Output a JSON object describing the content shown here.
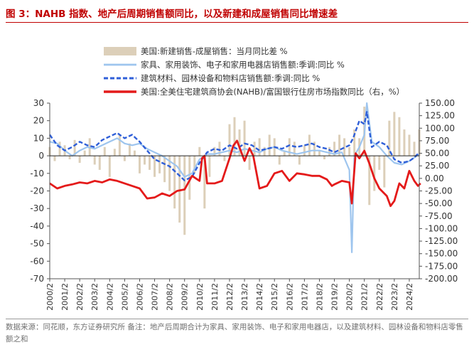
{
  "figure": {
    "title": "图 3：NAHB 指数、地产后周期销售额同比，以及新建和成屋销售同比增速差",
    "source": "数据来源：同花顺，东方证券研究所  备注：地产后周期合计为家具、家用装饰、电子和家用电器店，以及建筑材料、园林设备和物料店零售额之和"
  },
  "colors": {
    "title": "#c00000",
    "bar_series": "#dccfb9",
    "line_furniture": "#9ec5ee",
    "line_building": "#2f5fd8",
    "line_nahb": "#e41a1a"
  },
  "chart_data": {
    "type": "bar+line",
    "legend": {
      "placement": "top-left",
      "entries": [
        "美国:新建销售-成屋销售：当月同比差 %",
        "家具、家用装饰、电子和家用电器店销售额:季调:同比 %",
        "建筑材料、园林设备和物料店销售额:季调:同比 %",
        "美国:全美住宅建筑商协会(NAHB)/富国银行住房市场指数同比（右，%）"
      ]
    },
    "x_axis": {
      "ticks": [
        "2000/2",
        "2001/2",
        "2002/2",
        "2003/2",
        "2004/2",
        "2005/2",
        "2006/2",
        "2007/2",
        "2008/2",
        "2009/2",
        "2010/2",
        "2011/2",
        "2012/2",
        "2013/2",
        "2014/2",
        "2015/2",
        "2016/2",
        "2017/2",
        "2018/2",
        "2019/2",
        "2020/2",
        "2021/2",
        "2022/2",
        "2023/2",
        "2024/2"
      ],
      "range": [
        "2000-02",
        "2024-10"
      ]
    },
    "y_left": {
      "ylim": [
        -70,
        30
      ],
      "ticks": [
        30,
        20,
        10,
        0,
        -10,
        -20,
        -30,
        -40,
        -50,
        -60,
        -70
      ]
    },
    "y_right": {
      "ylim": [
        -200,
        150
      ],
      "ticks": [
        "150.00",
        "125.00",
        "100.00",
        "75.00",
        "50.00",
        "25.00",
        "0.00",
        "-25.00",
        "-50.00",
        "-75.00",
        "-100.00",
        "-125.00",
        "-150.00",
        "-175.00",
        "-200.00"
      ]
    },
    "series": [
      {
        "name": "美国:新建销售-成屋销售：当月同比差 %",
        "kind": "bar",
        "axis": "left",
        "points": [
          [
            "2000-02",
            5
          ],
          [
            "2000-06",
            -3
          ],
          [
            "2000-10",
            8
          ],
          [
            "2001-02",
            6
          ],
          [
            "2001-06",
            -2
          ],
          [
            "2001-10",
            9
          ],
          [
            "2002-02",
            -4
          ],
          [
            "2002-06",
            3
          ],
          [
            "2002-10",
            10
          ],
          [
            "2003-02",
            -5
          ],
          [
            "2003-06",
            -8
          ],
          [
            "2003-10",
            5
          ],
          [
            "2004-02",
            -12
          ],
          [
            "2004-06",
            4
          ],
          [
            "2004-10",
            12
          ],
          [
            "2005-02",
            -3
          ],
          [
            "2005-06",
            7
          ],
          [
            "2005-10",
            3
          ],
          [
            "2006-02",
            -10
          ],
          [
            "2006-06",
            -5
          ],
          [
            "2006-10",
            -8
          ],
          [
            "2007-02",
            -12
          ],
          [
            "2007-06",
            -10
          ],
          [
            "2007-10",
            -15
          ],
          [
            "2008-02",
            -20
          ],
          [
            "2008-06",
            -30
          ],
          [
            "2008-10",
            -38
          ],
          [
            "2009-02",
            -45
          ],
          [
            "2009-06",
            -25
          ],
          [
            "2009-10",
            -10
          ],
          [
            "2010-02",
            5
          ],
          [
            "2010-06",
            -30
          ],
          [
            "2010-10",
            -12
          ],
          [
            "2011-02",
            5
          ],
          [
            "2011-06",
            8
          ],
          [
            "2011-10",
            -3
          ],
          [
            "2012-02",
            18
          ],
          [
            "2012-06",
            22
          ],
          [
            "2012-10",
            15
          ],
          [
            "2013-02",
            20
          ],
          [
            "2013-06",
            -8
          ],
          [
            "2013-10",
            8
          ],
          [
            "2014-02",
            10
          ],
          [
            "2014-06",
            5
          ],
          [
            "2014-10",
            12
          ],
          [
            "2015-02",
            10
          ],
          [
            "2015-06",
            -5
          ],
          [
            "2015-10",
            3
          ],
          [
            "2016-02",
            10
          ],
          [
            "2016-06",
            8
          ],
          [
            "2016-10",
            -5
          ],
          [
            "2017-02",
            6
          ],
          [
            "2017-06",
            12
          ],
          [
            "2017-10",
            8
          ],
          [
            "2018-02",
            3
          ],
          [
            "2018-06",
            -2
          ],
          [
            "2018-10",
            5
          ],
          [
            "2019-02",
            8
          ],
          [
            "2019-06",
            12
          ],
          [
            "2019-10",
            10
          ],
          [
            "2020-02",
            5
          ],
          [
            "2020-06",
            15
          ],
          [
            "2020-10",
            10
          ],
          [
            "2021-02",
            28
          ],
          [
            "2021-06",
            -28
          ],
          [
            "2021-10",
            -20
          ],
          [
            "2022-02",
            -8
          ],
          [
            "2022-06",
            -18
          ],
          [
            "2022-10",
            20
          ],
          [
            "2023-02",
            25
          ],
          [
            "2023-06",
            22
          ],
          [
            "2023-10",
            15
          ],
          [
            "2024-02",
            12
          ],
          [
            "2024-06",
            8
          ],
          [
            "2024-10",
            15
          ]
        ]
      },
      {
        "name": "家具、家用装饰、电子和家用电器店销售额:季调:同比 %",
        "kind": "line",
        "axis": "left",
        "points": [
          [
            "2000-02",
            8
          ],
          [
            "2000-08",
            7
          ],
          [
            "2001-02",
            3
          ],
          [
            "2001-08",
            0
          ],
          [
            "2002-02",
            3
          ],
          [
            "2002-08",
            5
          ],
          [
            "2003-02",
            4
          ],
          [
            "2003-08",
            6
          ],
          [
            "2004-02",
            8
          ],
          [
            "2004-08",
            10
          ],
          [
            "2005-02",
            7
          ],
          [
            "2005-08",
            6
          ],
          [
            "2006-02",
            7
          ],
          [
            "2006-08",
            4
          ],
          [
            "2007-02",
            2
          ],
          [
            "2007-08",
            0
          ],
          [
            "2008-02",
            -3
          ],
          [
            "2008-08",
            -6
          ],
          [
            "2009-02",
            -12
          ],
          [
            "2009-08",
            -10
          ],
          [
            "2010-02",
            -2
          ],
          [
            "2010-08",
            1
          ],
          [
            "2011-02",
            1
          ],
          [
            "2011-08",
            2
          ],
          [
            "2012-02",
            3
          ],
          [
            "2012-08",
            2
          ],
          [
            "2013-02",
            4
          ],
          [
            "2013-08",
            3
          ],
          [
            "2014-02",
            2
          ],
          [
            "2014-08",
            4
          ],
          [
            "2015-02",
            5
          ],
          [
            "2015-08",
            3
          ],
          [
            "2016-02",
            2
          ],
          [
            "2016-08",
            1
          ],
          [
            "2017-02",
            2
          ],
          [
            "2017-08",
            3
          ],
          [
            "2018-02",
            3
          ],
          [
            "2018-08",
            2
          ],
          [
            "2019-02",
            1
          ],
          [
            "2019-08",
            2
          ],
          [
            "2020-02",
            -8
          ],
          [
            "2020-04",
            -55
          ],
          [
            "2020-06",
            0
          ],
          [
            "2020-10",
            5
          ],
          [
            "2021-02",
            12
          ],
          [
            "2021-04",
            30
          ],
          [
            "2021-08",
            8
          ],
          [
            "2022-02",
            5
          ],
          [
            "2022-08",
            0
          ],
          [
            "2023-02",
            -4
          ],
          [
            "2023-08",
            -5
          ],
          [
            "2024-02",
            -3
          ],
          [
            "2024-06",
            -1
          ],
          [
            "2024-10",
            1
          ]
        ]
      },
      {
        "name": "建筑材料、园林设备和物料店销售额:季调:同比 %",
        "kind": "line",
        "axis": "left",
        "points": [
          [
            "2000-02",
            12
          ],
          [
            "2000-08",
            6
          ],
          [
            "2001-02",
            3
          ],
          [
            "2001-08",
            5
          ],
          [
            "2002-02",
            8
          ],
          [
            "2002-08",
            6
          ],
          [
            "2003-02",
            5
          ],
          [
            "2003-08",
            9
          ],
          [
            "2004-02",
            11
          ],
          [
            "2004-08",
            13
          ],
          [
            "2005-02",
            10
          ],
          [
            "2005-08",
            12
          ],
          [
            "2006-02",
            8
          ],
          [
            "2006-08",
            3
          ],
          [
            "2007-02",
            -2
          ],
          [
            "2007-08",
            -4
          ],
          [
            "2008-02",
            -6
          ],
          [
            "2008-08",
            -10
          ],
          [
            "2009-02",
            -14
          ],
          [
            "2009-08",
            -12
          ],
          [
            "2010-02",
            -4
          ],
          [
            "2010-08",
            2
          ],
          [
            "2011-02",
            4
          ],
          [
            "2011-08",
            3
          ],
          [
            "2012-02",
            6
          ],
          [
            "2012-08",
            4
          ],
          [
            "2013-02",
            7
          ],
          [
            "2013-08",
            6
          ],
          [
            "2014-02",
            3
          ],
          [
            "2014-08",
            4
          ],
          [
            "2015-02",
            5
          ],
          [
            "2015-08",
            4
          ],
          [
            "2016-02",
            6
          ],
          [
            "2016-08",
            5
          ],
          [
            "2017-02",
            6
          ],
          [
            "2017-08",
            7
          ],
          [
            "2018-02",
            5
          ],
          [
            "2018-08",
            4
          ],
          [
            "2019-02",
            2
          ],
          [
            "2019-08",
            4
          ],
          [
            "2020-02",
            6
          ],
          [
            "2020-05",
            10
          ],
          [
            "2020-10",
            20
          ],
          [
            "2021-02",
            18
          ],
          [
            "2021-04",
            25
          ],
          [
            "2021-08",
            5
          ],
          [
            "2022-02",
            8
          ],
          [
            "2022-08",
            6
          ],
          [
            "2023-02",
            -2
          ],
          [
            "2023-08",
            -4
          ],
          [
            "2024-02",
            -3
          ],
          [
            "2024-06",
            -1
          ],
          [
            "2024-10",
            2
          ]
        ]
      },
      {
        "name": "美国:全美住宅建筑商协会(NAHB)/富国银行住房市场指数同比（右，%）",
        "kind": "line",
        "axis": "right",
        "points": [
          [
            "2000-02",
            -10
          ],
          [
            "2000-08",
            -20
          ],
          [
            "2001-02",
            -15
          ],
          [
            "2001-08",
            -12
          ],
          [
            "2002-02",
            -8
          ],
          [
            "2002-08",
            -10
          ],
          [
            "2003-02",
            -5
          ],
          [
            "2003-08",
            -8
          ],
          [
            "2004-02",
            -2
          ],
          [
            "2004-08",
            -5
          ],
          [
            "2005-02",
            -10
          ],
          [
            "2005-08",
            -15
          ],
          [
            "2006-02",
            -20
          ],
          [
            "2006-08",
            -40
          ],
          [
            "2007-02",
            -38
          ],
          [
            "2007-08",
            -30
          ],
          [
            "2008-02",
            -35
          ],
          [
            "2008-08",
            -25
          ],
          [
            "2009-02",
            -22
          ],
          [
            "2009-08",
            5
          ],
          [
            "2010-02",
            -5
          ],
          [
            "2010-04",
            40
          ],
          [
            "2010-06",
            45
          ],
          [
            "2010-08",
            -10
          ],
          [
            "2011-02",
            -10
          ],
          [
            "2011-08",
            -5
          ],
          [
            "2012-02",
            40
          ],
          [
            "2012-05",
            65
          ],
          [
            "2012-08",
            75
          ],
          [
            "2012-11",
            55
          ],
          [
            "2013-02",
            35
          ],
          [
            "2013-06",
            60
          ],
          [
            "2013-09",
            45
          ],
          [
            "2014-02",
            -20
          ],
          [
            "2014-08",
            -15
          ],
          [
            "2015-02",
            10
          ],
          [
            "2015-08",
            15
          ],
          [
            "2016-02",
            -5
          ],
          [
            "2016-08",
            10
          ],
          [
            "2017-02",
            8
          ],
          [
            "2017-08",
            5
          ],
          [
            "2018-02",
            5
          ],
          [
            "2018-08",
            -2
          ],
          [
            "2018-12",
            -15
          ],
          [
            "2019-02",
            -12
          ],
          [
            "2019-08",
            -5
          ],
          [
            "2020-02",
            -8
          ],
          [
            "2020-04",
            -50
          ],
          [
            "2020-07",
            50
          ],
          [
            "2020-10",
            40
          ],
          [
            "2021-02",
            55
          ],
          [
            "2021-06",
            30
          ],
          [
            "2021-10",
            0
          ],
          [
            "2022-02",
            -20
          ],
          [
            "2022-08",
            -35
          ],
          [
            "2022-11",
            -55
          ],
          [
            "2023-02",
            -45
          ],
          [
            "2023-06",
            -10
          ],
          [
            "2023-10",
            -20
          ],
          [
            "2024-02",
            15
          ],
          [
            "2024-06",
            -5
          ],
          [
            "2024-09",
            -15
          ],
          [
            "2024-11",
            -10
          ]
        ]
      }
    ]
  }
}
